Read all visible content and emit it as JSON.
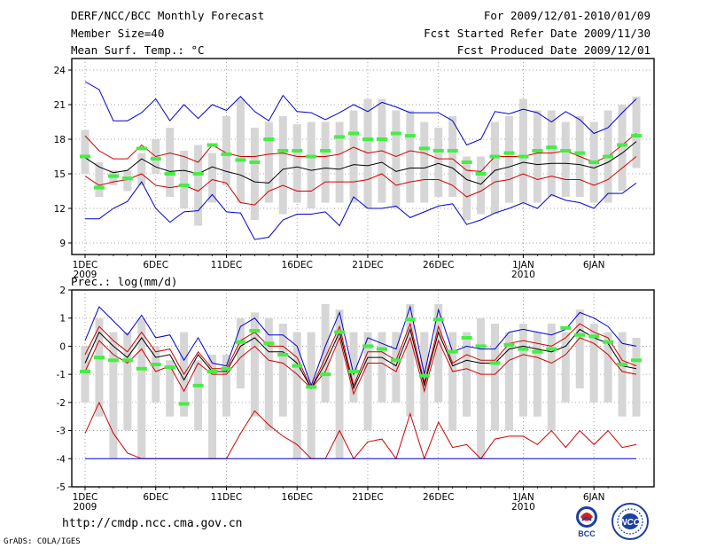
{
  "header": {
    "title": "DERF/NCC/BCC Monthly Forecast",
    "member_size": "Member Size=40",
    "variable": "Mean Surf. Temp.: °C",
    "period": "For 2009/12/01-2010/01/09",
    "started": "Fcst Started Refer Date 2009/11/30",
    "produced": "Fcst Produced Date 2009/12/01"
  },
  "footer": {
    "url": "http://cmdp.ncc.cma.gov.cn",
    "credit": "GrADS: COLA/IGES",
    "logo_bcc": "BCC",
    "logo_ncc": "NCC"
  },
  "colors": {
    "box": "#d6d6d6",
    "max_min": "#0000d0",
    "pct": "#d00000",
    "mean": "#000000",
    "obs": "#44ee44",
    "grid": "#888888"
  },
  "chart_data": [
    {
      "type": "line",
      "title": "Mean Surf. Temp.: °C",
      "ylim": [
        8,
        25
      ],
      "yticks": [
        9,
        12,
        15,
        18,
        21,
        24
      ],
      "xlabels": [
        {
          "day": 0,
          "label": "1DEC",
          "sub": "2009"
        },
        {
          "day": 5,
          "label": "6DEC",
          "sub": ""
        },
        {
          "day": 10,
          "label": "11DEC",
          "sub": ""
        },
        {
          "day": 15,
          "label": "16DEC",
          "sub": ""
        },
        {
          "day": 20,
          "label": "21DEC",
          "sub": ""
        },
        {
          "day": 25,
          "label": "26DEC",
          "sub": ""
        },
        {
          "day": 31,
          "label": "1JAN",
          "sub": "2010"
        },
        {
          "day": 36,
          "label": "6JAN",
          "sub": ""
        }
      ],
      "days": 40,
      "box_low": [
        15.0,
        13.0,
        14.0,
        13.5,
        14.0,
        15.0,
        13.0,
        12.0,
        10.5,
        12.5,
        14.0,
        12.5,
        11.0,
        12.5,
        11.5,
        12.5,
        12.0,
        12.5,
        12.5,
        12.5,
        12.0,
        12.5,
        12.0,
        12.5,
        12.5,
        13.0,
        13.0,
        11.0,
        11.5,
        11.5,
        12.5,
        12.5,
        12.5,
        13.0,
        13.0,
        13.0,
        12.5,
        12.5,
        13.5,
        15.5
      ],
      "box_high": [
        18.8,
        16.0,
        15.3,
        15.3,
        16.8,
        18.0,
        19.0,
        17.0,
        17.5,
        16.8,
        20.0,
        21.5,
        19.0,
        19.5,
        20.0,
        19.3,
        19.5,
        19.5,
        19.5,
        20.5,
        21.5,
        21.5,
        20.5,
        20.5,
        19.5,
        19.0,
        20.0,
        16.5,
        16.5,
        19.5,
        20.0,
        21.5,
        20.5,
        20.5,
        19.5,
        20.0,
        19.5,
        20.5,
        21.0,
        21.7
      ],
      "series": [
        {
          "name": "max",
          "color": "max_min",
          "values": [
            23.0,
            22.3,
            19.6,
            19.6,
            20.3,
            21.5,
            19.6,
            21.0,
            19.8,
            21.0,
            20.5,
            21.7,
            20.4,
            19.6,
            21.8,
            20.4,
            20.3,
            19.7,
            20.3,
            21.0,
            20.4,
            21.2,
            20.8,
            20.3,
            20.3,
            20.3,
            19.6,
            17.5,
            18.0,
            20.4,
            20.2,
            20.6,
            20.3,
            19.5,
            20.4,
            19.7,
            18.5,
            19.0,
            20.3,
            21.5
          ]
        },
        {
          "name": "pct_high",
          "color": "pct",
          "values": [
            18.3,
            17.0,
            16.3,
            16.3,
            17.5,
            16.5,
            16.8,
            16.5,
            16.0,
            17.5,
            16.8,
            16.5,
            16.5,
            16.7,
            16.8,
            16.5,
            16.5,
            16.5,
            16.7,
            17.3,
            16.8,
            17.0,
            16.5,
            17.0,
            16.8,
            16.3,
            16.3,
            15.3,
            15.2,
            16.5,
            16.5,
            16.5,
            16.8,
            16.8,
            17.0,
            16.5,
            16.0,
            16.5,
            17.5,
            18.5
          ]
        },
        {
          "name": "mean",
          "color": "mean",
          "values": [
            16.4,
            15.6,
            15.1,
            15.3,
            16.3,
            15.6,
            15.2,
            15.3,
            15.0,
            15.6,
            15.2,
            14.9,
            14.3,
            14.2,
            15.4,
            15.6,
            15.3,
            15.5,
            15.4,
            15.8,
            15.7,
            16.0,
            15.2,
            15.5,
            15.5,
            15.9,
            15.5,
            14.5,
            14.1,
            15.3,
            15.6,
            16.0,
            15.8,
            15.9,
            15.9,
            15.8,
            15.5,
            16.0,
            16.8,
            17.8
          ]
        },
        {
          "name": "pct_low",
          "color": "pct",
          "values": [
            14.8,
            14.0,
            14.3,
            14.5,
            15.0,
            14.0,
            13.8,
            14.0,
            13.5,
            14.5,
            14.2,
            12.5,
            12.3,
            13.5,
            14.0,
            13.5,
            13.5,
            14.3,
            14.3,
            14.3,
            14.5,
            15.0,
            14.0,
            14.3,
            14.5,
            14.5,
            14.0,
            13.0,
            13.5,
            14.3,
            14.5,
            15.0,
            14.5,
            14.8,
            14.5,
            14.5,
            14.0,
            14.5,
            15.5,
            16.5
          ]
        },
        {
          "name": "min",
          "color": "max_min",
          "values": [
            11.1,
            11.1,
            12.0,
            12.6,
            14.3,
            12.0,
            10.8,
            11.7,
            11.8,
            13.2,
            11.7,
            11.6,
            9.3,
            9.5,
            11.0,
            11.5,
            11.5,
            11.7,
            10.5,
            13.0,
            12.0,
            12.0,
            12.2,
            11.2,
            11.7,
            12.2,
            12.4,
            10.6,
            11.0,
            11.6,
            12.0,
            12.5,
            12.0,
            13.2,
            12.7,
            12.5,
            12.0,
            13.3,
            13.3,
            14.2
          ]
        }
      ],
      "obs": [
        16.5,
        13.8,
        14.8,
        14.6,
        17.2,
        16.3,
        15.0,
        14.0,
        15.0,
        17.5,
        16.7,
        16.2,
        16.0,
        18.0,
        17.0,
        17.0,
        16.5,
        17.0,
        18.2,
        18.5,
        18.0,
        18.0,
        18.5,
        18.3,
        17.2,
        17.0,
        17.0,
        16.0,
        15.0,
        16.5,
        16.8,
        16.5,
        17.0,
        17.3,
        17.0,
        16.8,
        16.0,
        16.5,
        17.5,
        18.3
      ]
    },
    {
      "type": "line",
      "title": "Prec.: log(mm/d)",
      "ylim": [
        -5,
        2
      ],
      "yticks": [
        -5,
        -4,
        -3,
        -2,
        -1,
        0,
        1,
        2
      ],
      "days": 40,
      "box_low": [
        -2.0,
        -2.5,
        -4.0,
        -3.0,
        -4.0,
        -2.0,
        -2.5,
        -2.5,
        -3.0,
        -4.0,
        -2.5,
        -1.5,
        -2.5,
        -3.0,
        -2.5,
        -4.0,
        -4.0,
        -2.0,
        -4.0,
        -2.0,
        -3.0,
        -2.0,
        -2.0,
        -2.5,
        -3.0,
        -2.0,
        -3.0,
        -2.5,
        -4.0,
        -3.0,
        -3.0,
        -2.5,
        -2.5,
        -3.0,
        -2.0,
        -1.5,
        -2.0,
        -2.0,
        -2.5,
        -2.5
      ],
      "box_high": [
        0.0,
        1.0,
        0.5,
        0.5,
        1.0,
        0.0,
        -0.5,
        0.5,
        -0.5,
        -0.3,
        -0.3,
        1.0,
        1.2,
        1.0,
        0.8,
        0.5,
        0.5,
        1.5,
        1.3,
        0.5,
        0.5,
        0.5,
        0.5,
        1.5,
        0.5,
        1.5,
        0.5,
        0.5,
        1.0,
        0.8,
        0.5,
        0.8,
        0.5,
        0.8,
        0.5,
        1.3,
        0.8,
        0.5,
        0.5,
        0.3
      ],
      "series": [
        {
          "name": "max",
          "color": "max_min",
          "values": [
            0.2,
            1.4,
            0.9,
            0.4,
            1.1,
            0.3,
            0.4,
            -0.5,
            0.3,
            -0.6,
            -0.7,
            0.7,
            1.0,
            0.4,
            0.4,
            0.0,
            -1.4,
            0.0,
            1.2,
            -1.0,
            0.3,
            0.1,
            -0.1,
            1.4,
            -1.0,
            1.3,
            -0.2,
            0.0,
            -0.1,
            -0.1,
            0.5,
            0.6,
            0.5,
            0.4,
            0.6,
            1.2,
            1.0,
            0.7,
            0.1,
            0.0
          ]
        },
        {
          "name": "pct_high",
          "color": "pct",
          "values": [
            -0.3,
            0.7,
            0.2,
            -0.2,
            0.5,
            -0.2,
            -0.1,
            -1.0,
            -0.2,
            -0.8,
            -0.8,
            0.2,
            0.5,
            0.0,
            0.0,
            -0.4,
            -1.5,
            -0.4,
            0.7,
            -1.4,
            -0.2,
            -0.2,
            -0.5,
            0.8,
            -1.3,
            0.7,
            -0.6,
            -0.3,
            -0.5,
            -0.5,
            0.1,
            0.2,
            0.1,
            0.0,
            0.3,
            0.8,
            0.5,
            0.3,
            -0.5,
            -0.7
          ]
        },
        {
          "name": "mean",
          "color": "mean",
          "values": [
            -0.6,
            0.5,
            0.0,
            -0.4,
            0.3,
            -0.4,
            -0.3,
            -1.2,
            -0.3,
            -0.9,
            -0.9,
            0.0,
            0.3,
            -0.2,
            -0.2,
            -0.6,
            -1.5,
            -0.6,
            0.5,
            -1.5,
            -0.4,
            -0.4,
            -0.7,
            0.6,
            -1.4,
            0.5,
            -0.7,
            -0.5,
            -0.6,
            -0.6,
            -0.1,
            0.0,
            -0.1,
            -0.2,
            0.0,
            0.6,
            0.3,
            0.1,
            -0.7,
            -0.8
          ]
        },
        {
          "name": "pct_low",
          "color": "pct",
          "values": [
            -0.9,
            0.2,
            -0.3,
            -0.6,
            -0.1,
            -0.9,
            -0.7,
            -1.6,
            -0.6,
            -1.0,
            -1.0,
            -0.4,
            0.0,
            -0.5,
            -0.6,
            -1.0,
            -1.5,
            -0.9,
            0.3,
            -1.7,
            -0.6,
            -0.6,
            -0.9,
            0.3,
            -1.6,
            0.2,
            -0.9,
            -0.8,
            -1.0,
            -1.0,
            -0.5,
            -0.3,
            -0.4,
            -0.6,
            -0.3,
            0.3,
            0.1,
            -0.3,
            -0.9,
            -1.0
          ]
        },
        {
          "name": "pct_min",
          "color": "pct",
          "values": [
            -3.1,
            -2.0,
            -3.1,
            -3.8,
            -4.0,
            -4.0,
            -4.0,
            -4.0,
            -4.0,
            -4.0,
            -4.0,
            -3.1,
            -2.3,
            -2.8,
            -3.2,
            -3.5,
            -4.0,
            -4.0,
            -3.0,
            -4.0,
            -3.4,
            -3.3,
            -4.0,
            -2.4,
            -4.0,
            -2.7,
            -3.6,
            -3.5,
            -4.0,
            -3.3,
            -3.2,
            -3.2,
            -3.5,
            -3.0,
            -3.6,
            -3.0,
            -3.5,
            -3.0,
            -3.6,
            -3.5
          ]
        },
        {
          "name": "min",
          "color": "max_min",
          "values": [
            -4.0,
            -4.0,
            -4.0,
            -4.0,
            -4.0,
            -4.0,
            -4.0,
            -4.0,
            -4.0,
            -4.0,
            -4.0,
            -4.0,
            -4.0,
            -4.0,
            -4.0,
            -4.0,
            -4.0,
            -4.0,
            -4.0,
            -4.0,
            -4.0,
            -4.0,
            -4.0,
            -4.0,
            -4.0,
            -4.0,
            -4.0,
            -4.0,
            -4.0,
            -4.0,
            -4.0,
            -4.0,
            -4.0,
            -4.0,
            -4.0,
            -4.0,
            -4.0,
            -4.0,
            -4.0,
            -4.0
          ]
        }
      ],
      "obs": [
        -0.9,
        -0.4,
        -0.5,
        -0.5,
        -0.8,
        -0.65,
        -0.75,
        -2.05,
        -1.4,
        -0.9,
        -0.8,
        0.15,
        0.55,
        0.1,
        -0.3,
        -0.7,
        -1.45,
        -1.0,
        0.5,
        -0.9,
        0.0,
        -0.1,
        -0.5,
        0.95,
        -1.05,
        0.95,
        -0.2,
        0.3,
        0.0,
        -0.6,
        0.05,
        -0.1,
        -0.2,
        -0.1,
        0.65,
        0.4,
        0.35,
        0.15,
        -0.65,
        -0.5
      ]
    }
  ]
}
